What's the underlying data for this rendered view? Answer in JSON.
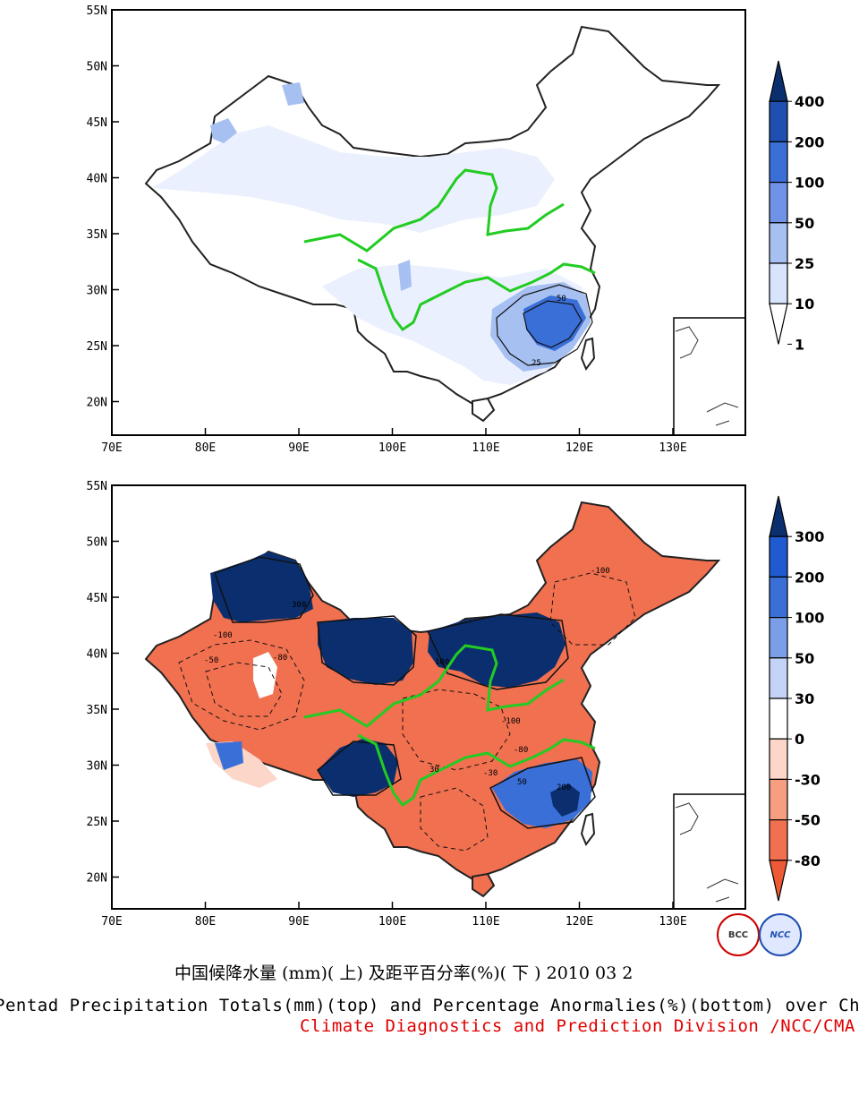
{
  "maps": [
    {
      "id": "top",
      "y_ticks": [
        "55N",
        "50N",
        "45N",
        "40N",
        "35N",
        "30N",
        "25N",
        "20N"
      ],
      "x_ticks": [
        "70E",
        "80E",
        "90E",
        "100E",
        "110E",
        "120E",
        "130E"
      ],
      "contour_labels": [
        "50",
        "25"
      ],
      "colorbar": {
        "labels": [
          "400",
          "200",
          "100",
          "50",
          "25",
          "10",
          "1"
        ],
        "colors": [
          "#0b2f6e",
          "#1f4fb0",
          "#3a6fd8",
          "#6f93e6",
          "#a7c0f2",
          "#d8e4fb",
          "#ffffff"
        ]
      }
    },
    {
      "id": "bottom",
      "y_ticks": [
        "55N",
        "50N",
        "45N",
        "40N",
        "35N",
        "30N",
        "25N",
        "20N"
      ],
      "x_ticks": [
        "70E",
        "80E",
        "90E",
        "100E",
        "110E",
        "120E",
        "130E"
      ],
      "contour_labels": [
        "-100",
        "300",
        "-50",
        "-80",
        "-30",
        "30",
        "50",
        "200",
        "100",
        "-100",
        "-100",
        "-80"
      ],
      "colorbar": {
        "labels": [
          "300",
          "200",
          "100",
          "50",
          "30",
          "0",
          "-30",
          "-50",
          "-80"
        ],
        "colors": [
          "#0b2f6e",
          "#1f5ad0",
          "#3a6fd8",
          "#7a9fe8",
          "#c4d4f6",
          "#ffffff",
          "#fbd6c9",
          "#f79e80",
          "#f07050",
          "#ee5a36"
        ]
      }
    }
  ],
  "captions": {
    "chinese": "中国候降水量 (mm)( 上) 及距平百分率(%)( 下 ) 2010 03 2",
    "english": "Pentad Precipitation Totals(mm)(top) and Percentage Anormalies(%)(bottom) over China",
    "division": "Climate Diagnostics and Prediction Division /NCC/CMA"
  },
  "logos": {
    "left": "BCC",
    "right": "NCC"
  }
}
